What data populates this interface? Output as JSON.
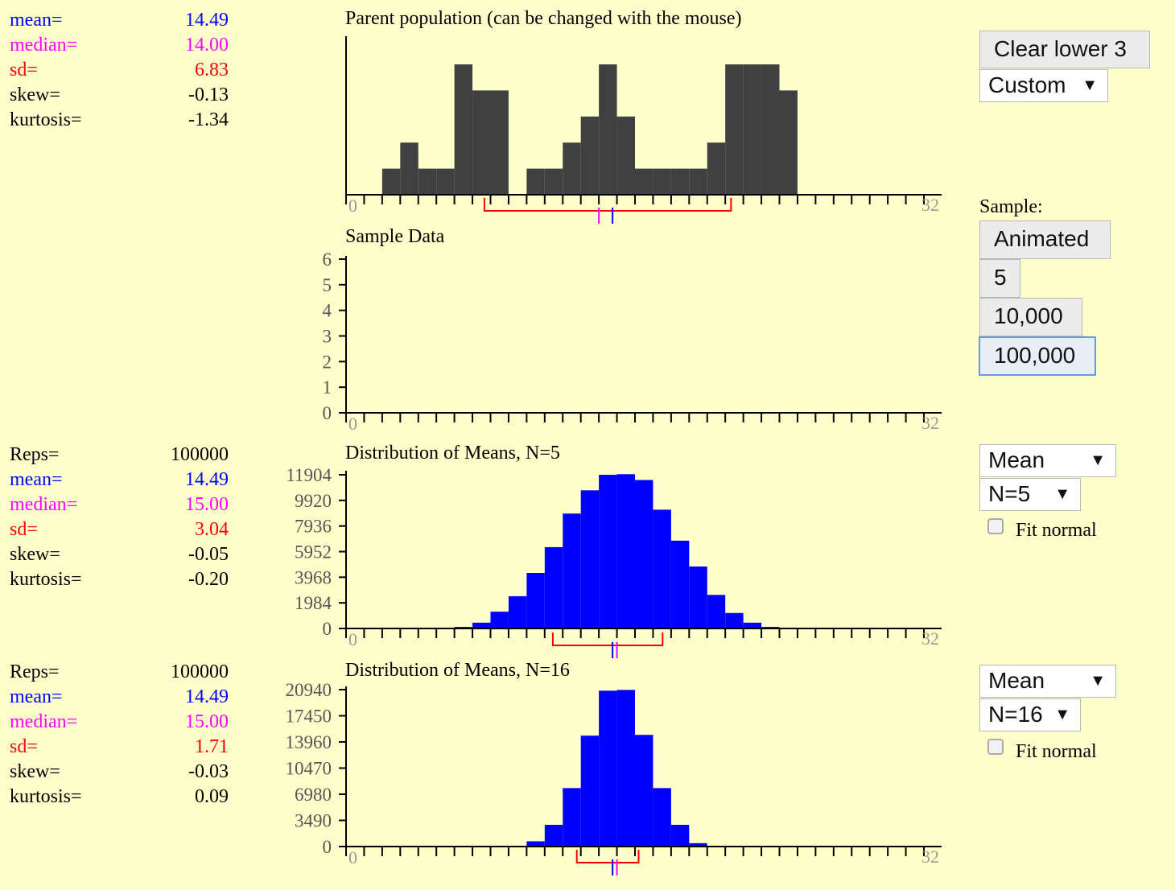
{
  "parent": {
    "stats": [
      {
        "label": "mean=",
        "value": "14.49",
        "color": "#0000ff"
      },
      {
        "label": "median=",
        "value": "14.00",
        "color": "#ff00ff"
      },
      {
        "label": "sd=",
        "value": "6.83",
        "color": "#ff0000"
      },
      {
        "label": "skew=",
        "value": "-0.13",
        "color": "#000000"
      },
      {
        "label": "kurtosis=",
        "value": "-1.34",
        "color": "#000000"
      }
    ],
    "title": "Parent population (can be changed with the mouse)",
    "axis_start_label": "0",
    "axis_end_label": "32"
  },
  "sample": {
    "title": "Sample Data",
    "axis_start_label": "0",
    "axis_end_label": "32"
  },
  "means5": {
    "stats": [
      {
        "label": "Reps=",
        "value": "100000",
        "color": "#000000"
      },
      {
        "label": "mean=",
        "value": "14.49",
        "color": "#0000ff"
      },
      {
        "label": "median=",
        "value": "15.00",
        "color": "#ff00ff"
      },
      {
        "label": "sd=",
        "value": "3.04",
        "color": "#ff0000"
      },
      {
        "label": "skew=",
        "value": "-0.05",
        "color": "#000000"
      },
      {
        "label": "kurtosis=",
        "value": "-0.20",
        "color": "#000000"
      }
    ],
    "title": "Distribution of Means, N=5",
    "axis_start_label": "0",
    "axis_end_label": "32"
  },
  "means16": {
    "stats": [
      {
        "label": "Reps=",
        "value": "100000",
        "color": "#000000"
      },
      {
        "label": "mean=",
        "value": "14.49",
        "color": "#0000ff"
      },
      {
        "label": "median=",
        "value": "15.00",
        "color": "#ff00ff"
      },
      {
        "label": "sd=",
        "value": "1.71",
        "color": "#ff0000"
      },
      {
        "label": "skew=",
        "value": "-0.03",
        "color": "#000000"
      },
      {
        "label": "kurtosis=",
        "value": "0.09",
        "color": "#000000"
      }
    ],
    "title": "Distribution of Means, N=16",
    "axis_start_label": "0",
    "axis_end_label": "32"
  },
  "controls": {
    "clear_lower": "Clear lower 3",
    "dist_select": "Custom",
    "sample_label": "Sample:",
    "animated": "Animated",
    "five": "5",
    "ten_thousand": "10,000",
    "hundred_thousand": "100,000",
    "stat_select_1": "Mean",
    "n_select_1": "N=5",
    "fit_normal_1": "Fit normal",
    "stat_select_2": "Mean",
    "n_select_2": "N=16",
    "fit_normal_2": "Fit normal",
    "select_arrow": "▼"
  },
  "colors": {
    "parent_bars": "#404040",
    "means_bars": "#0000ff",
    "mean_marker": "#0000ff",
    "median_marker": "#ff00ff",
    "sd_bracket": "#ff0000"
  },
  "chart_data": [
    {
      "id": "parent",
      "type": "bar",
      "title": "Parent population (can be changed with the mouse)",
      "xlim": [
        0,
        32
      ],
      "values": [
        0,
        0,
        1,
        2,
        1,
        1,
        5,
        4,
        4,
        0,
        1,
        1,
        2,
        3,
        5,
        3,
        1,
        1,
        1,
        1,
        2,
        5,
        5,
        5,
        4,
        0,
        0,
        0,
        0,
        0,
        0,
        0
      ],
      "ylim": [
        0,
        5
      ],
      "mean": 14.49,
      "median": 14.0,
      "sd": 6.83
    },
    {
      "id": "sample",
      "type": "bar",
      "title": "Sample Data",
      "xlim": [
        0,
        32
      ],
      "ylim": [
        0,
        6
      ],
      "yticks": [
        0,
        1,
        2,
        3,
        4,
        5,
        6
      ],
      "values": []
    },
    {
      "id": "means5",
      "type": "bar",
      "title": "Distribution of Means, N=5",
      "xlim": [
        0,
        32
      ],
      "ylim": [
        0,
        11904
      ],
      "yticks": [
        0,
        1984,
        3968,
        5952,
        7936,
        9920,
        11904
      ],
      "values": [
        0,
        0,
        0,
        0,
        0,
        0,
        120,
        450,
        1300,
        2500,
        4300,
        6300,
        8900,
        10700,
        11900,
        11950,
        11500,
        9200,
        6800,
        4800,
        2600,
        1200,
        450,
        120,
        0,
        0,
        0,
        0,
        0,
        0,
        0,
        0
      ],
      "mean": 14.49,
      "median": 15.0,
      "sd": 3.04
    },
    {
      "id": "means16",
      "type": "bar",
      "title": "Distribution of Means, N=16",
      "xlim": [
        0,
        32
      ],
      "ylim": [
        0,
        20940
      ],
      "yticks": [
        0,
        3490,
        6980,
        10470,
        13960,
        17450,
        20940
      ],
      "values": [
        0,
        0,
        0,
        0,
        0,
        0,
        0,
        0,
        0,
        0,
        700,
        2900,
        7800,
        14800,
        20800,
        20900,
        14900,
        7800,
        2900,
        450,
        0,
        0,
        0,
        0,
        0,
        0,
        0,
        0,
        0,
        0,
        0,
        0
      ],
      "mean": 14.49,
      "median": 15.0,
      "sd": 1.71
    }
  ]
}
